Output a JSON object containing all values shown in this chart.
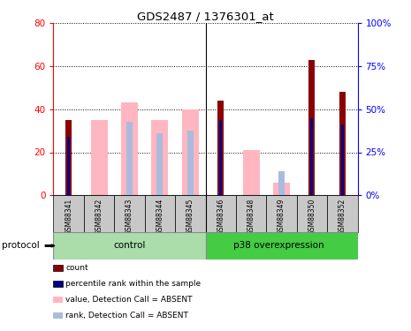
{
  "title": "GDS2487 / 1376301_at",
  "samples": [
    "GSM88341",
    "GSM88342",
    "GSM88343",
    "GSM88344",
    "GSM88345",
    "GSM88346",
    "GSM88348",
    "GSM88349",
    "GSM88350",
    "GSM88352"
  ],
  "count_values": [
    35,
    0,
    0,
    0,
    0,
    44,
    0,
    0,
    63,
    48
  ],
  "rank_values": [
    27,
    0,
    0,
    0,
    0,
    35,
    0,
    0,
    36,
    33
  ],
  "absent_value_values": [
    0,
    35,
    43,
    35,
    40,
    0,
    21,
    6,
    0,
    0
  ],
  "absent_rank_values": [
    0,
    0,
    34,
    29,
    30,
    0,
    0,
    11,
    0,
    0
  ],
  "ylim_left": [
    0,
    80
  ],
  "ylim_right": [
    0,
    100
  ],
  "yticks_left": [
    0,
    20,
    40,
    60,
    80
  ],
  "yticks_right": [
    0,
    25,
    50,
    75,
    100
  ],
  "ytick_labels_left": [
    "0",
    "20",
    "40",
    "60",
    "80"
  ],
  "ytick_labels_right": [
    "0%",
    "25%",
    "50%",
    "75%",
    "100%"
  ],
  "color_count": "#8B0000",
  "color_rank": "#00008B",
  "color_absent_value": "#FFB6C1",
  "color_absent_rank": "#AABBDD",
  "bg_xlabel": "#C8C8C8",
  "bg_control": "#AADDAA",
  "bg_p38": "#44CC44",
  "legend_items": [
    "count",
    "percentile rank within the sample",
    "value, Detection Call = ABSENT",
    "rank, Detection Call = ABSENT"
  ]
}
